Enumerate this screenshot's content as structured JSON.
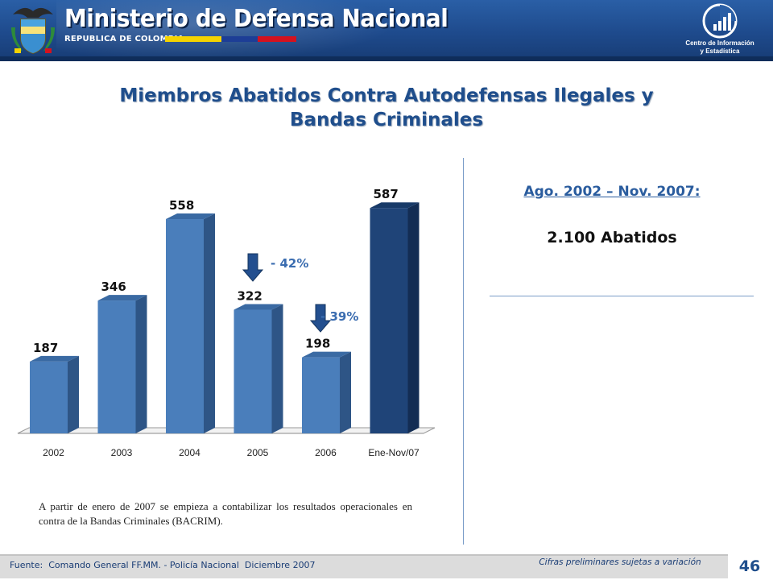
{
  "header": {
    "ministry": "Ministerio de Defensa Nacional",
    "republic": "REPUBLICA DE COLOMBIA",
    "center_line1": "Centro de Información",
    "center_line2": "y Estadística"
  },
  "title": {
    "line1": "Miembros Abatidos Contra Autodefensas Ilegales y",
    "line2": "Bandas Criminales"
  },
  "chart_data": {
    "type": "bar",
    "categories": [
      "2002",
      "2003",
      "2004",
      "2005",
      "2006",
      "Ene-Nov/07"
    ],
    "values": [
      187,
      346,
      558,
      322,
      198,
      587
    ],
    "data_labels": [
      "187",
      "346",
      "558",
      "322",
      "198",
      "587"
    ],
    "title": "",
    "xlabel": "",
    "ylabel": "",
    "ylim": [
      0,
      600
    ],
    "grid": false,
    "legend": "none",
    "colors": {
      "bar_front": "#4a7ebb",
      "bar_side": "#2e5586",
      "bar_top": "#3a6aa3",
      "highlight_front": "#1f4478",
      "highlight_side": "#132d54",
      "highlight_top": "#183a68"
    },
    "highlight_index": 5,
    "annotations": [
      {
        "text": "- 42%",
        "icon": "arrow-down-icon",
        "between": [
          "2004",
          "2005"
        ]
      },
      {
        "text": "- 39%",
        "icon": "arrow-down-icon",
        "between": [
          "2005",
          "2006"
        ]
      }
    ]
  },
  "summary": {
    "period": "Ago. 2002 – Nov. 2007:",
    "total": "2.100 Abatidos"
  },
  "note": "A partir de enero de 2007 se empieza a contabilizar los resultados operacionales en contra de la Bandas Criminales (BACRIM).",
  "footer": {
    "source": "Fuente:  Comando General FF.MM. - Policía Nacional  Diciembre 2007",
    "preliminary": "Cifras preliminares sujetas a variación",
    "page": "46"
  }
}
